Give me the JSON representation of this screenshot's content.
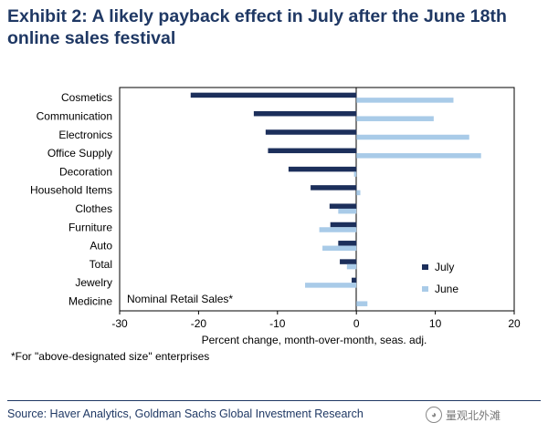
{
  "header": {
    "title": "Exhibit 2: A likely payback effect in July after the June 18th online sales festival"
  },
  "chart_data": {
    "type": "bar",
    "orientation": "horizontal",
    "categories": [
      "Cosmetics",
      "Communication",
      "Electronics",
      "Office Supply",
      "Decoration",
      "Household Items",
      "Clothes",
      "Furniture",
      "Auto",
      "Total",
      "Jewelry",
      "Medicine"
    ],
    "series": [
      {
        "name": "July",
        "values": [
          -21,
          -13,
          -11.5,
          -11.2,
          -8.6,
          -5.8,
          -3.4,
          -3.3,
          -2.3,
          -2.1,
          -0.6,
          null
        ]
      },
      {
        "name": "June",
        "values": [
          12.3,
          9.8,
          14.3,
          15.8,
          -0.3,
          0.5,
          -2.3,
          -4.7,
          -4.3,
          -1.2,
          -6.5,
          1.4
        ]
      }
    ],
    "xlabel": "Percent change, month-over-month, seas. adj.",
    "xlim": [
      -30,
      20
    ],
    "xticks": [
      -30,
      -20,
      -10,
      0,
      10,
      20
    ],
    "annotation": "Nominal Retail Sales*",
    "legend_position": "bottom-right",
    "grid": false,
    "colors": {
      "July": "#1c2f5b",
      "June": "#a9cbe8"
    }
  },
  "footnote": "*For \"above-designated size\" enterprises",
  "source": "Source: Haver Analytics, Goldman Sachs Global Investment Research",
  "watermark": {
    "badge": "量观北外滩",
    "icon": "wechat-icon"
  }
}
